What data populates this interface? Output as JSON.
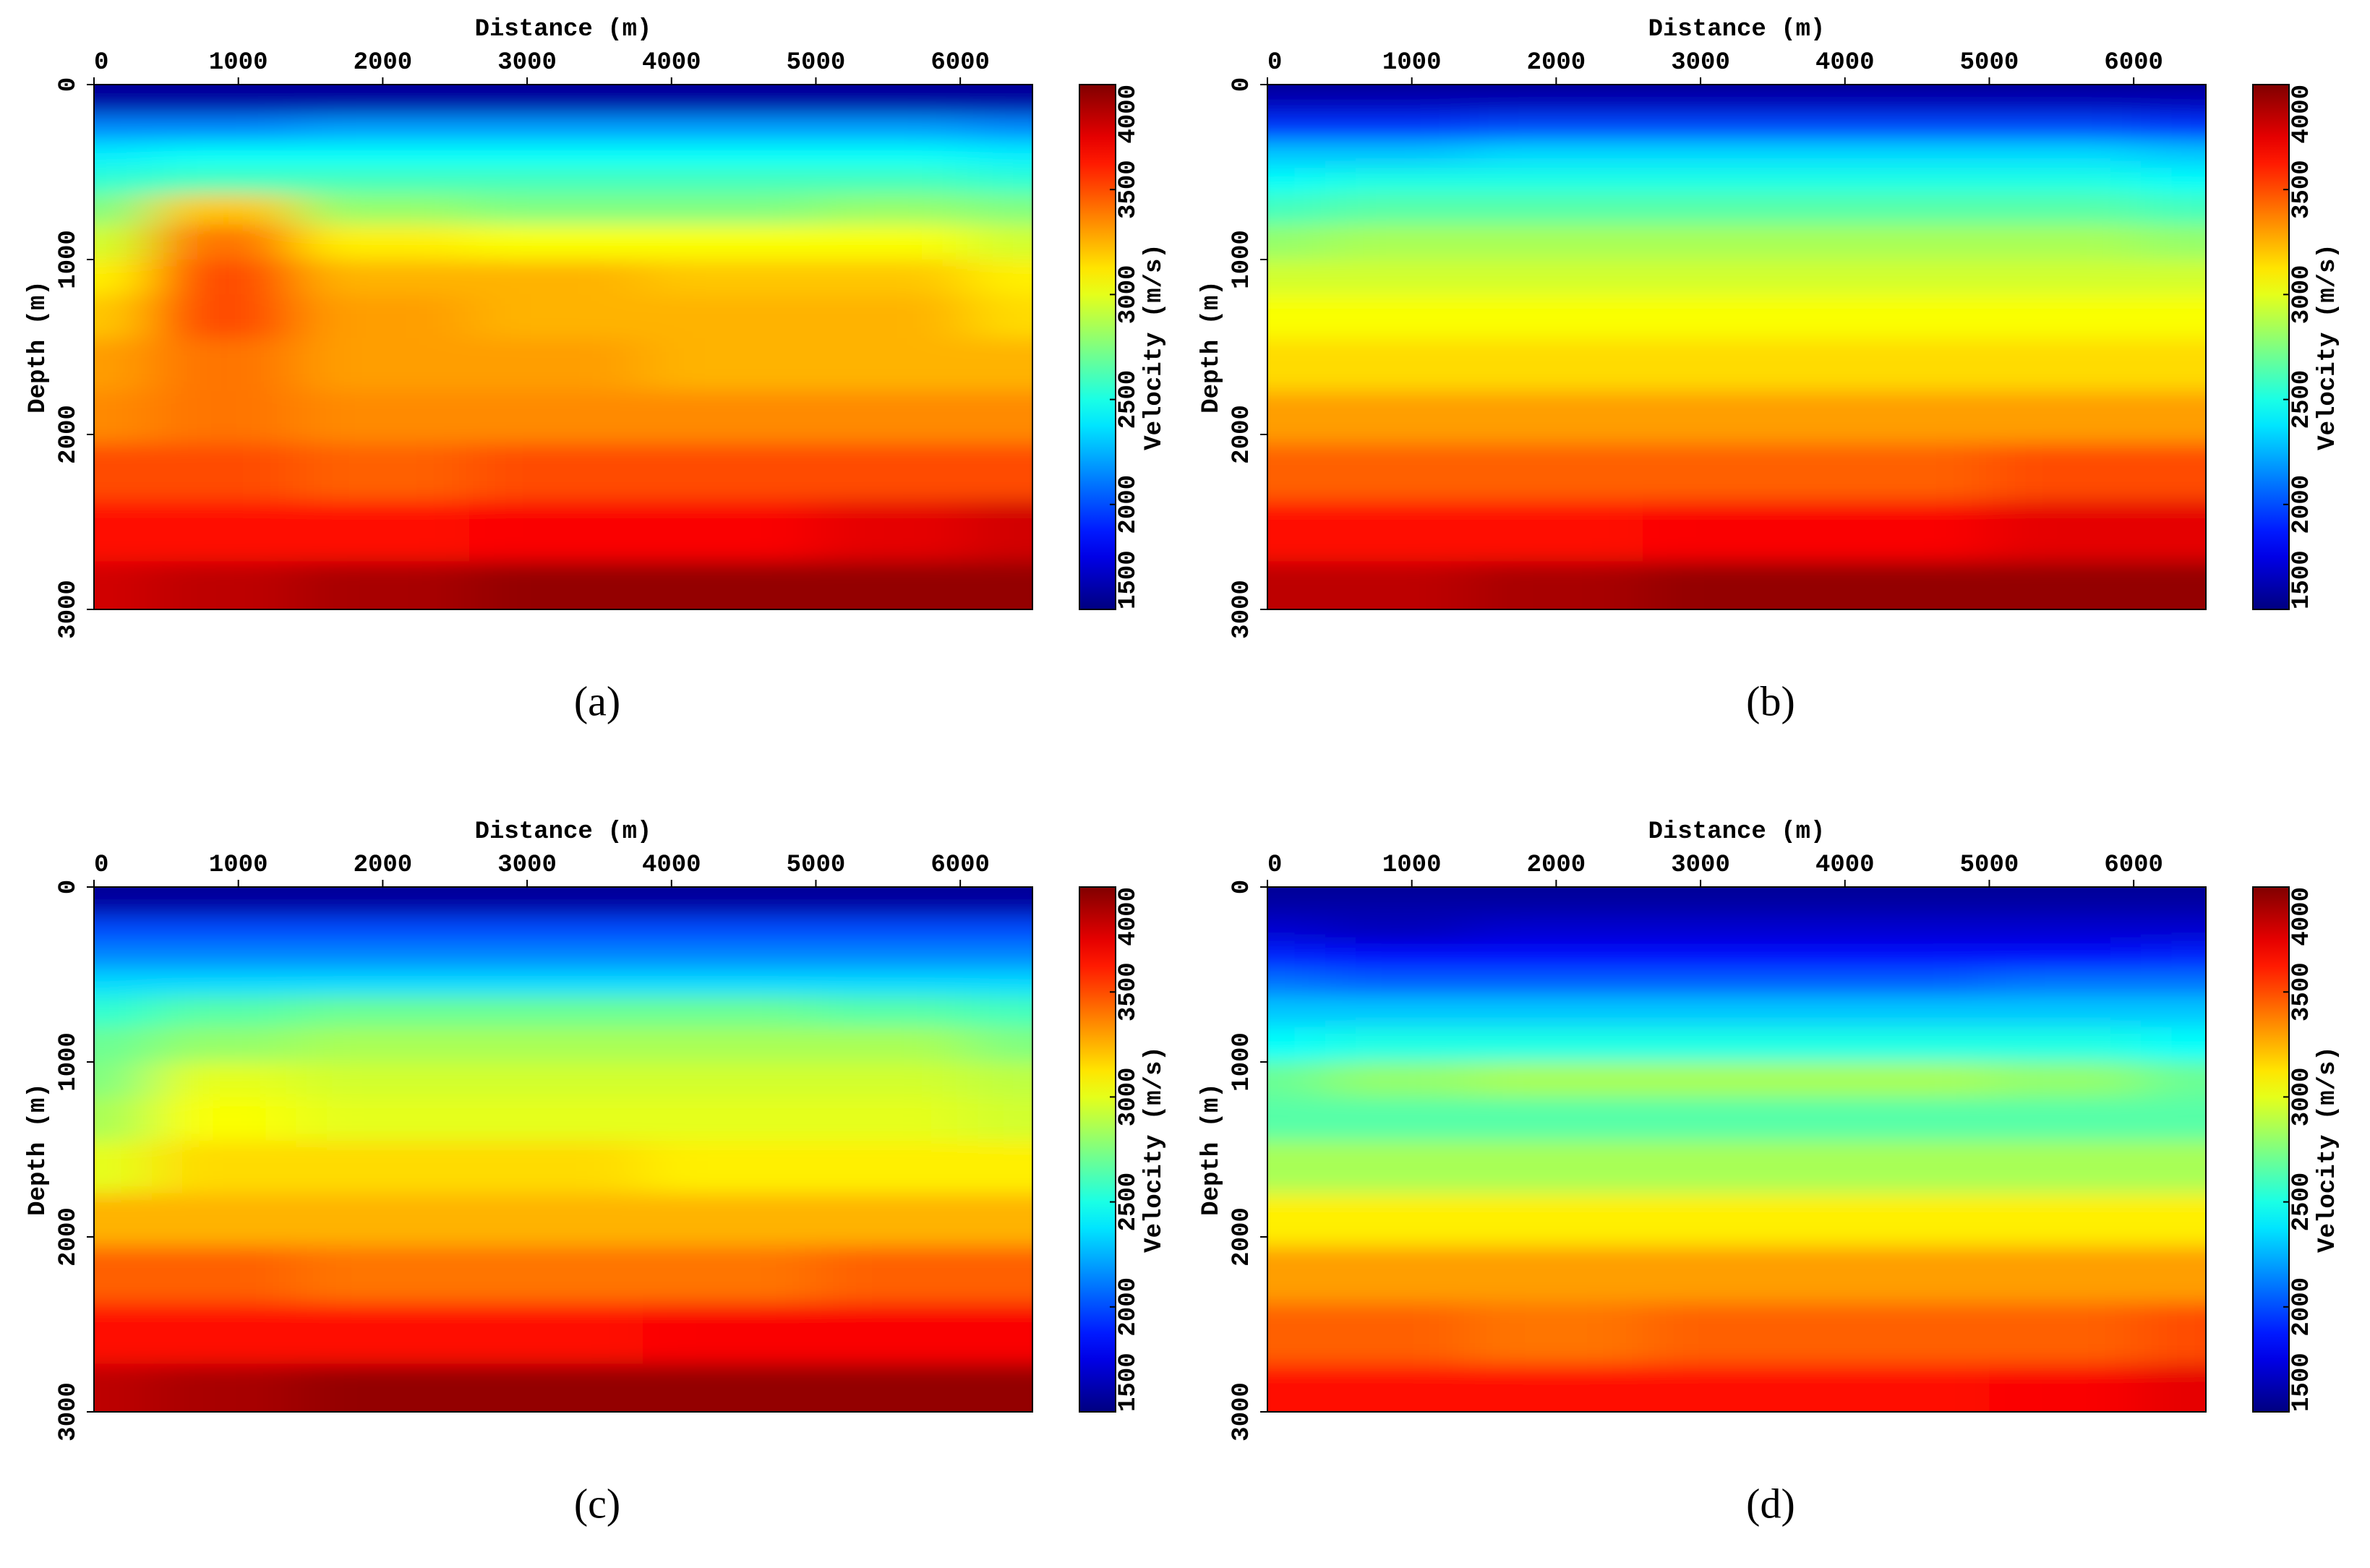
{
  "chart_data": [
    {
      "type": "heatmap",
      "caption": "(a)",
      "x_label": "Distance (m)",
      "y_label": "Depth (m)",
      "colorbar_label": "Velocity (m/s)",
      "colormap": "jet",
      "xlim": [
        0,
        6500
      ],
      "ylim": [
        0,
        3000
      ],
      "xticks": [
        0,
        1000,
        2000,
        3000,
        4000,
        5000,
        6000
      ],
      "yticks": [
        0,
        1000,
        2000,
        3000
      ],
      "clim": [
        1500,
        4000
      ],
      "cticks": [
        1500,
        2000,
        2500,
        3000,
        3500,
        4000
      ],
      "x": [
        0,
        800,
        2000,
        3200,
        4400,
        5600,
        6500
      ],
      "y": [
        0,
        100,
        250,
        400,
        550,
        700,
        900,
        1100,
        1300,
        1600,
        1900,
        2200,
        2550,
        2900
      ],
      "values": [
        [
          1550,
          1550,
          1550,
          1550,
          1550,
          1550,
          1550
        ],
        [
          1600,
          1600,
          1600,
          1600,
          1600,
          1600,
          1600
        ],
        [
          2150,
          2150,
          2200,
          2200,
          2200,
          2200,
          2150
        ],
        [
          2400,
          2450,
          2450,
          2450,
          2450,
          2450,
          2400
        ],
        [
          2550,
          2600,
          2600,
          2600,
          2600,
          2600,
          2550
        ],
        [
          2750,
          3200,
          2800,
          2750,
          2750,
          2800,
          2750
        ],
        [
          2950,
          3400,
          3100,
          3050,
          3050,
          3050,
          2950
        ],
        [
          3100,
          3500,
          3250,
          3250,
          3200,
          3200,
          3100
        ],
        [
          3200,
          3500,
          3300,
          3250,
          3250,
          3250,
          3150
        ],
        [
          3300,
          3400,
          3300,
          3300,
          3250,
          3250,
          3250
        ],
        [
          3350,
          3400,
          3350,
          3350,
          3350,
          3350,
          3350
        ],
        [
          3500,
          3500,
          3450,
          3500,
          3500,
          3500,
          3500
        ],
        [
          3650,
          3650,
          3650,
          3700,
          3700,
          3750,
          3800
        ],
        [
          3800,
          3850,
          3900,
          3950,
          3950,
          3950,
          3950
        ]
      ]
    },
    {
      "type": "heatmap",
      "caption": "(b)",
      "x_label": "Distance (m)",
      "y_label": "Depth (m)",
      "colorbar_label": "Velocity (m/s)",
      "colormap": "jet",
      "xlim": [
        0,
        6500
      ],
      "ylim": [
        0,
        3000
      ],
      "xticks": [
        0,
        1000,
        2000,
        3000,
        4000,
        5000,
        6000
      ],
      "yticks": [
        0,
        1000,
        2000,
        3000
      ],
      "clim": [
        1500,
        4000
      ],
      "cticks": [
        1500,
        2000,
        2500,
        3000,
        3500,
        4000
      ],
      "x": [
        0,
        800,
        2000,
        3200,
        4400,
        5600,
        6500
      ],
      "y": [
        0,
        100,
        250,
        400,
        550,
        700,
        900,
        1100,
        1300,
        1600,
        1900,
        2200,
        2550,
        2900
      ],
      "values": [
        [
          1550,
          1550,
          1550,
          1550,
          1550,
          1550,
          1550
        ],
        [
          1650,
          1650,
          1650,
          1650,
          1650,
          1650,
          1650
        ],
        [
          1950,
          1950,
          2000,
          2000,
          2000,
          2000,
          1950
        ],
        [
          2300,
          2300,
          2350,
          2350,
          2350,
          2350,
          2300
        ],
        [
          2450,
          2500,
          2500,
          2500,
          2500,
          2500,
          2450
        ],
        [
          2600,
          2650,
          2650,
          2650,
          2650,
          2650,
          2600
        ],
        [
          2800,
          2850,
          2850,
          2850,
          2850,
          2850,
          2800
        ],
        [
          2950,
          2950,
          2950,
          2950,
          2950,
          2950,
          2950
        ],
        [
          3050,
          3050,
          3050,
          3050,
          3050,
          3050,
          3050
        ],
        [
          3150,
          3150,
          3150,
          3150,
          3150,
          3150,
          3150
        ],
        [
          3300,
          3300,
          3300,
          3300,
          3300,
          3300,
          3300
        ],
        [
          3450,
          3450,
          3450,
          3450,
          3450,
          3500,
          3500
        ],
        [
          3650,
          3650,
          3650,
          3700,
          3700,
          3750,
          3750
        ],
        [
          3850,
          3850,
          3900,
          3950,
          3950,
          3950,
          3950
        ]
      ]
    },
    {
      "type": "heatmap",
      "caption": "(c)",
      "x_label": "Distance (m)",
      "y_label": "Depth (m)",
      "colorbar_label": "Velocity (m/s)",
      "colormap": "jet",
      "xlim": [
        0,
        6500
      ],
      "ylim": [
        0,
        3000
      ],
      "xticks": [
        0,
        1000,
        2000,
        3000,
        4000,
        5000,
        6000
      ],
      "yticks": [
        0,
        1000,
        2000,
        3000
      ],
      "clim": [
        1500,
        4000
      ],
      "cticks": [
        1500,
        2000,
        2500,
        3000,
        3500,
        4000
      ],
      "x": [
        0,
        800,
        2000,
        3200,
        4400,
        5600,
        6500
      ],
      "y": [
        0,
        100,
        250,
        400,
        550,
        700,
        900,
        1100,
        1300,
        1600,
        1900,
        2200,
        2550,
        2900
      ],
      "values": [
        [
          1550,
          1550,
          1550,
          1550,
          1550,
          1550,
          1550
        ],
        [
          1600,
          1600,
          1600,
          1600,
          1600,
          1600,
          1600
        ],
        [
          2000,
          2000,
          2000,
          2000,
          2000,
          2000,
          2000
        ],
        [
          2150,
          2150,
          2150,
          2150,
          2150,
          2150,
          2150
        ],
        [
          2350,
          2350,
          2350,
          2350,
          2350,
          2350,
          2350
        ],
        [
          2550,
          2650,
          2700,
          2700,
          2700,
          2650,
          2600
        ],
        [
          2700,
          2800,
          2850,
          2850,
          2850,
          2850,
          2750
        ],
        [
          2750,
          3000,
          2950,
          2950,
          2950,
          2950,
          2900
        ],
        [
          2850,
          3050,
          3000,
          3000,
          3000,
          3000,
          2950
        ],
        [
          3000,
          3150,
          3150,
          3150,
          3100,
          3100,
          3100
        ],
        [
          3250,
          3250,
          3250,
          3250,
          3250,
          3250,
          3250
        ],
        [
          3450,
          3450,
          3400,
          3400,
          3400,
          3450,
          3450
        ],
        [
          3650,
          3650,
          3650,
          3650,
          3700,
          3700,
          3700
        ],
        [
          3850,
          3900,
          3950,
          3950,
          3950,
          3950,
          3950
        ]
      ]
    },
    {
      "type": "heatmap",
      "caption": "(d)",
      "x_label": "Distance (m)",
      "y_label": "Depth (m)",
      "colorbar_label": "Velocity (m/s)",
      "colormap": "jet",
      "xlim": [
        0,
        6500
      ],
      "ylim": [
        0,
        3000
      ],
      "xticks": [
        0,
        1000,
        2000,
        3000,
        4000,
        5000,
        6000
      ],
      "yticks": [
        0,
        1000,
        2000,
        3000
      ],
      "clim": [
        1500,
        4000
      ],
      "cticks": [
        1500,
        2000,
        2500,
        3000,
        3500,
        4000
      ],
      "x": [
        0,
        800,
        2000,
        3200,
        4400,
        5600,
        6500
      ],
      "y": [
        0,
        100,
        250,
        400,
        550,
        700,
        900,
        1100,
        1300,
        1600,
        1900,
        2200,
        2550,
        2900
      ],
      "values": [
        [
          1550,
          1550,
          1550,
          1550,
          1550,
          1550,
          1550
        ],
        [
          1600,
          1600,
          1600,
          1600,
          1600,
          1600,
          1600
        ],
        [
          1700,
          1650,
          1700,
          1700,
          1700,
          1700,
          1700
        ],
        [
          1900,
          1850,
          1850,
          1850,
          1850,
          1850,
          1900
        ],
        [
          2100,
          2050,
          2050,
          2050,
          2050,
          2100,
          2100
        ],
        [
          2300,
          2300,
          2300,
          2300,
          2300,
          2300,
          2300
        ],
        [
          2450,
          2500,
          2500,
          2500,
          2500,
          2500,
          2450
        ],
        [
          2700,
          2800,
          2850,
          2850,
          2850,
          2800,
          2700
        ],
        [
          2650,
          2650,
          2650,
          2650,
          2650,
          2650,
          2650
        ],
        [
          2850,
          2850,
          2850,
          2850,
          2850,
          2850,
          2850
        ],
        [
          3100,
          3100,
          3100,
          3100,
          3100,
          3100,
          3100
        ],
        [
          3300,
          3300,
          3300,
          3300,
          3300,
          3300,
          3300
        ],
        [
          3450,
          3450,
          3400,
          3450,
          3450,
          3450,
          3500
        ],
        [
          3650,
          3650,
          3650,
          3650,
          3650,
          3700,
          3750
        ]
      ]
    }
  ]
}
